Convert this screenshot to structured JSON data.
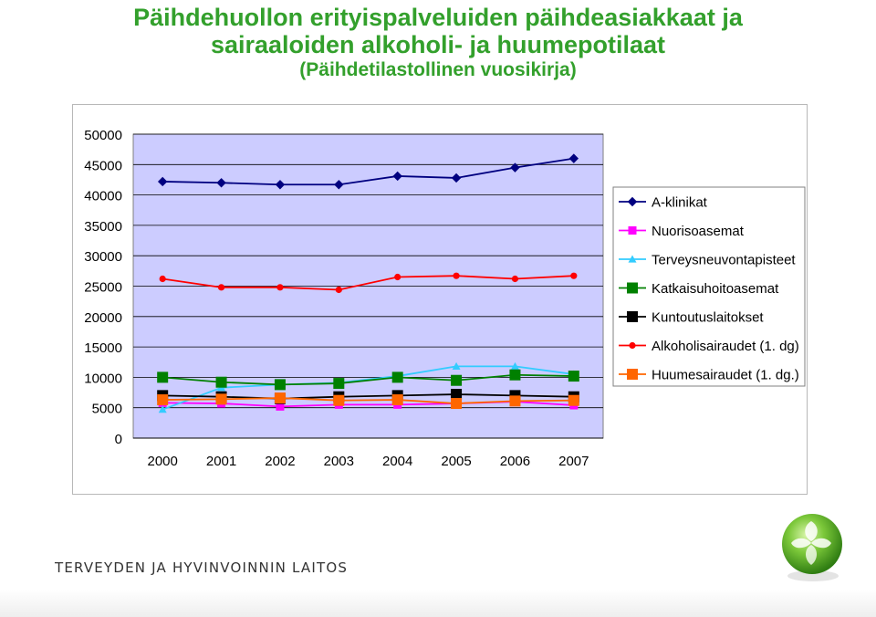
{
  "title": {
    "line1": "Päihdehuollon erityispalveluiden päihdeasiakkaat ja",
    "line2": "sairaaloiden alkoholi- ja huumepotilaat",
    "subtitle": "(Päihdetilastollinen vuosikirja)"
  },
  "footer": {
    "organization": "TERVEYDEN JA HYVINVOINNIN LAITOS"
  },
  "chart_data": {
    "type": "line",
    "categories": [
      "2000",
      "2001",
      "2002",
      "2003",
      "2004",
      "2005",
      "2006",
      "2007"
    ],
    "ylim": [
      0,
      50000
    ],
    "yticks": [
      "0",
      "5000",
      "10000",
      "15000",
      "20000",
      "25000",
      "30000",
      "35000",
      "40000",
      "45000",
      "50000"
    ],
    "plot_background": "#ccccff",
    "legend_position": "right",
    "series": [
      {
        "name": "A-klinikat",
        "color": "#000080",
        "marker": "diamond",
        "values": [
          42200,
          42000,
          41700,
          41700,
          43100,
          42800,
          44500,
          46000
        ]
      },
      {
        "name": "Nuorisoasemat",
        "color": "#ff00ff",
        "marker": "square",
        "values": [
          5800,
          5700,
          5200,
          5500,
          5500,
          5700,
          6000,
          5400
        ]
      },
      {
        "name": "Terveysneuvontapisteet",
        "color": "#33ccff",
        "marker": "triangle",
        "values": [
          4700,
          8300,
          8800,
          9100,
          10200,
          11800,
          11800,
          10500
        ]
      },
      {
        "name": "Katkaisuhoitoasemat",
        "color": "#008000",
        "marker": "square",
        "values": [
          10000,
          9200,
          8800,
          9000,
          10000,
          9500,
          10400,
          10200
        ]
      },
      {
        "name": "Kuntoutuslaitokset",
        "color": "#000000",
        "marker": "square",
        "values": [
          7000,
          6800,
          6500,
          6800,
          7000,
          7200,
          7000,
          6800
        ]
      },
      {
        "name": "Alkoholisairaudet (1. dg)",
        "color": "#ff0000",
        "marker": "circle",
        "values": [
          26200,
          24800,
          24800,
          24400,
          26500,
          26700,
          26200,
          26700
        ]
      },
      {
        "name": "Huumesairaudet (1. dg.)",
        "color": "#ff6600",
        "marker": "square",
        "values": [
          6300,
          6400,
          6600,
          6200,
          6300,
          5700,
          6100,
          6200
        ]
      }
    ]
  }
}
